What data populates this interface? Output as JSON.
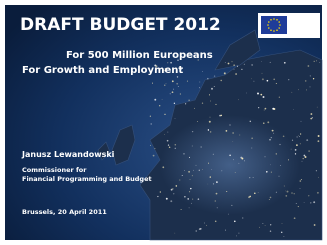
{
  "slide": {
    "title": "DRAFT BUDGET 2012",
    "subtitle": [
      "For 500 Million Europeans",
      "For Growth and Employment"
    ],
    "speaker": "Janusz Lewandowski",
    "role": [
      "Commissioner for",
      "Financial Programming and Budget"
    ],
    "place_date": "Brussels, 20 April 2011"
  }
}
